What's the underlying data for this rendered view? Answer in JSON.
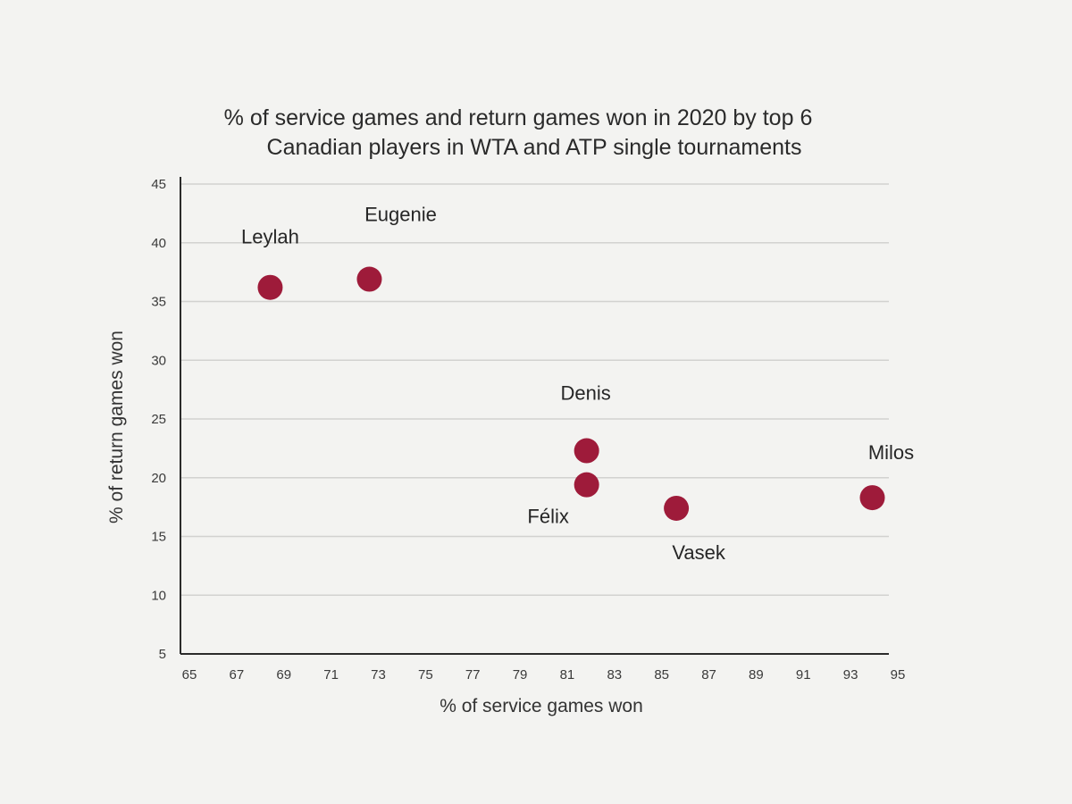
{
  "chart_data": {
    "type": "scatter",
    "title": [
      "% of service games and return games won in 2020 by top 6",
      "Canadian players in WTA and ATP single tournaments"
    ],
    "xlabel": "% of service games won",
    "ylabel": "% of return games won",
    "xlim": [
      65,
      95
    ],
    "ylim": [
      5,
      45
    ],
    "xticks": [
      65,
      67,
      69,
      71,
      73,
      75,
      77,
      79,
      81,
      83,
      85,
      87,
      89,
      91,
      93,
      95
    ],
    "yticks": [
      5,
      10,
      15,
      20,
      25,
      30,
      35,
      40,
      45
    ],
    "grid": "horizontal",
    "marker_color": "#9e1b3a",
    "points": [
      {
        "label": "Leylah",
        "x": 68.8,
        "y": 36.2
      },
      {
        "label": "Eugenie",
        "x": 73.0,
        "y": 36.9
      },
      {
        "label": "Denis",
        "x": 82.2,
        "y": 22.3
      },
      {
        "label": "Félix",
        "x": 82.2,
        "y": 19.4
      },
      {
        "label": "Vasek",
        "x": 86.0,
        "y": 17.4
      },
      {
        "label": "Milos",
        "x": 94.3,
        "y": 18.3
      }
    ]
  }
}
